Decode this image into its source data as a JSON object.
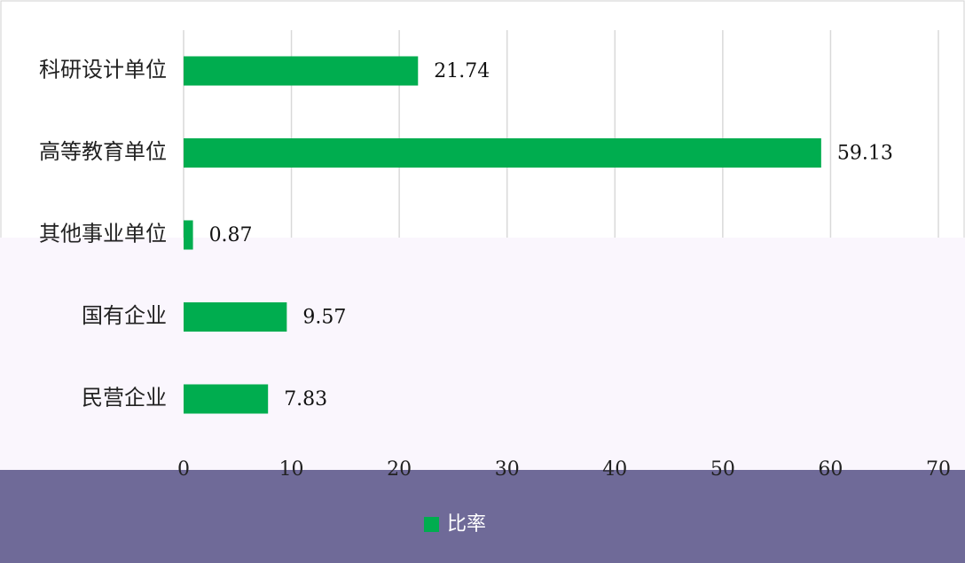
{
  "chart_data": {
    "type": "bar",
    "orientation": "horizontal",
    "categories": [
      "科研设计单位",
      "高等教育单位",
      "其他事业单位",
      "国有企业",
      "民营企业"
    ],
    "series": [
      {
        "name": "比率",
        "color": "#00ad4f",
        "values": [
          21.74,
          59.13,
          0.87,
          9.57,
          7.83
        ]
      }
    ],
    "xlim": [
      0,
      70
    ],
    "xticks": [
      0,
      10,
      20,
      30,
      40,
      50,
      60,
      70
    ],
    "grid": true,
    "legend": "bottom"
  }
}
